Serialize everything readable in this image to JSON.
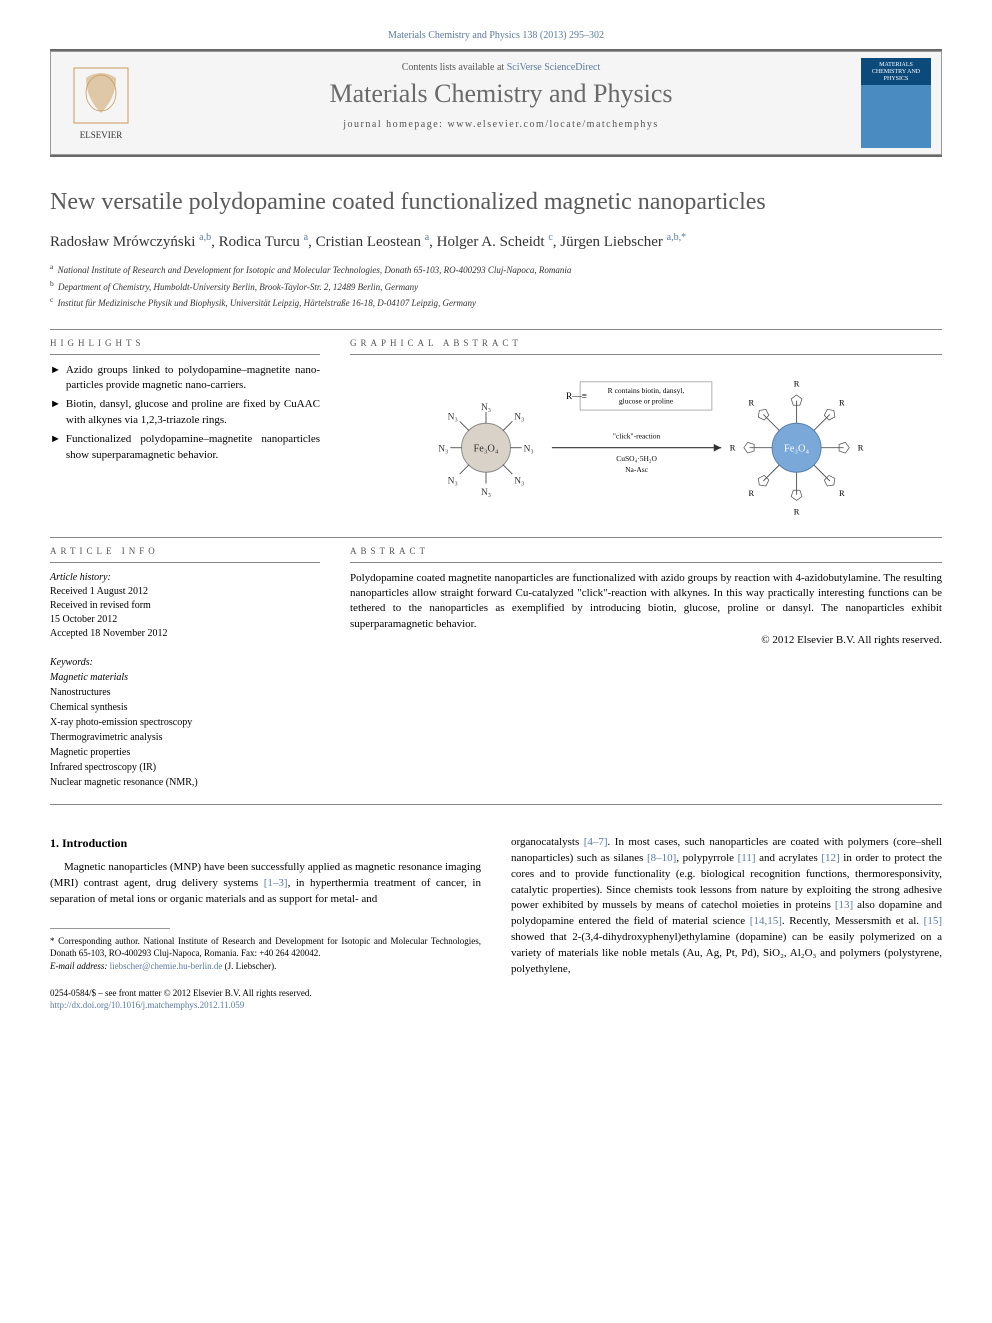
{
  "citation": "Materials Chemistry and Physics 138 (2013) 295–302",
  "header": {
    "contents_prefix": "Contents lists available at ",
    "contents_link": "SciVerse ScienceDirect",
    "journal_name": "Materials Chemistry and Physics",
    "homepage_prefix": "journal homepage: ",
    "homepage": "www.elsevier.com/locate/matchemphys",
    "cover_text": "MATERIALS CHEMISTRY AND PHYSICS",
    "elsevier_label": "ELSEVIER"
  },
  "article": {
    "title": "New versatile polydopamine coated functionalized magnetic nanoparticles",
    "authors_html": "Radosław Mrówczyński <sup>a,b</sup>, Rodica Turcu <sup>a</sup>, Cristian Leostean <sup>a</sup>, Holger A. Scheidt <sup>c</sup>, Jürgen Liebscher <sup>a,b,*</sup>",
    "affiliations": [
      {
        "sup": "a",
        "text": "National Institute of Research and Development for Isotopic and Molecular Technologies, Donath 65-103, RO-400293 Cluj-Napoca, Romania"
      },
      {
        "sup": "b",
        "text": "Department of Chemistry, Humboldt-University Berlin, Brook-Taylor-Str. 2, 12489 Berlin, Germany"
      },
      {
        "sup": "c",
        "text": "Institut für Medizinische Physik und Biophysik, Universität Leipzig, Härtelstraße 16-18, D-04107 Leipzig, Germany"
      }
    ]
  },
  "highlights": {
    "heading": "highlights",
    "items": [
      "Azido groups linked to polydopamine–magnetite nano-particles provide magnetic nano-carriers.",
      "Biotin, dansyl, glucose and proline are fixed by CuAAC with alkynes via 1,2,3-triazole rings.",
      "Functionalized polydopamine–magnetite nanoparticles show superparamagnetic behavior."
    ]
  },
  "graphical": {
    "heading": "graphical abstract",
    "core_label": "Fe₃O₄",
    "az_label": "N₃",
    "reaction_lines": [
      "R contains biotin, dansyl,",
      "glucose or proline"
    ],
    "reaction_center": [
      "\"click\"-reaction",
      "CuSO₄·5H₂O",
      "Na-Asc"
    ],
    "r_prefix": "R—≡",
    "r_label": "R"
  },
  "article_info": {
    "heading": "article info",
    "history_label": "Article history:",
    "history": [
      "Received 1 August 2012",
      "Received in revised form",
      "15 October 2012",
      "Accepted 18 November 2012"
    ],
    "keywords_label": "Keywords:",
    "keywords": [
      "Magnetic materials",
      "Nanostructures",
      "Chemical synthesis",
      "X-ray photo-emission spectroscopy",
      "Thermogravimetric analysis",
      "Magnetic properties",
      "Infrared spectroscopy (IR)",
      "Nuclear magnetic resonance (NMR,)"
    ]
  },
  "abstract": {
    "heading": "abstract",
    "text": "Polydopamine coated magnetite nanoparticles are functionalized with azido groups by reaction with 4-azidobutylamine. The resulting nanoparticles allow straight forward Cu-catalyzed \"click\"-reaction with alkynes. In this way practically interesting functions can be tethered to the nanoparticles as exemplified by introducing biotin, glucose, proline or dansyl. The nanoparticles exhibit superparamagnetic behavior.",
    "copyright": "© 2012 Elsevier B.V. All rights reserved."
  },
  "intro": {
    "heading": "1. Introduction",
    "col1": "Magnetic nanoparticles (MNP) have been successfully applied as magnetic resonance imaging (MRI) contrast agent, drug delivery systems [1–3], in hyperthermia treatment of cancer, in separation of metal ions or organic materials and as support for metal- and",
    "col2": "organocatalysts [4–7]. In most cases, such nanoparticles are coated with polymers (core–shell nanoparticles) such as silanes [8–10], polypyrrole [11] and acrylates [12] in order to protect the cores and to provide functionality (e.g. biological recognition functions, thermoresponsivity, catalytic properties). Since chemists took lessons from nature by exploiting the strong adhesive power exhibited by mussels by means of catechol moieties in proteins [13] also dopamine and polydopamine entered the field of material science [14,15]. Recently, Messersmith et al. [15] showed that 2-(3,4-dihydroxyphenyl)ethylamine (dopamine) can be easily polymerized on a variety of materials like noble metals (Au, Ag, Pt, Pd), SiO₂, Al₂O₃ and polymers (polystyrene, polyethylene,",
    "refs": {
      "r1": "[1–3]",
      "r4": "[4–7]",
      "r8": "[8–10]",
      "r11": "[11]",
      "r12": "[12]",
      "r13": "[13]",
      "r14": "[14,15]",
      "r15": "[15]"
    }
  },
  "footnote": {
    "star": "* Corresponding author. National Institute of Research and Development for Isotopic and Molecular Technologies, Donath 65-103, RO-400293 Cluj-Napoca, Romania. Fax: +40 264 420042.",
    "email_label": "E-mail address: ",
    "email": "liebscher@chemie.hu-berlin.de",
    "email_suffix": " (J. Liebscher)."
  },
  "footer": {
    "line1": "0254-0584/$ – see front matter © 2012 Elsevier B.V. All rights reserved.",
    "doi": "http://dx.doi.org/10.1016/j.matchemphys.2012.11.059"
  },
  "colors": {
    "link": "#5b7ba0",
    "heading_gray": "#6a6a6a",
    "rule": "#888888"
  }
}
